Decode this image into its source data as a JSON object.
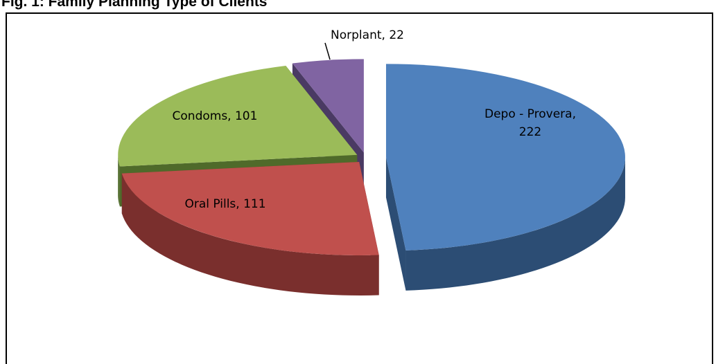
{
  "chart_data": {
    "type": "pie3d",
    "title": "Fig. 1: Family Planning Type of Clients",
    "categories": [
      "Depo - Provera, 222",
      "Oral Pills, 111",
      "Condoms, 101",
      "Norplant, 22"
    ],
    "values": [
      222,
      111,
      101,
      22
    ],
    "colors": [
      "#4f81bd",
      "#c0504d",
      "#9bbb59",
      "#8064a2"
    ],
    "wall_colors": [
      "#2c4d74",
      "#7a2f2d",
      "#4f6a2a",
      "#4a3a63"
    ]
  }
}
